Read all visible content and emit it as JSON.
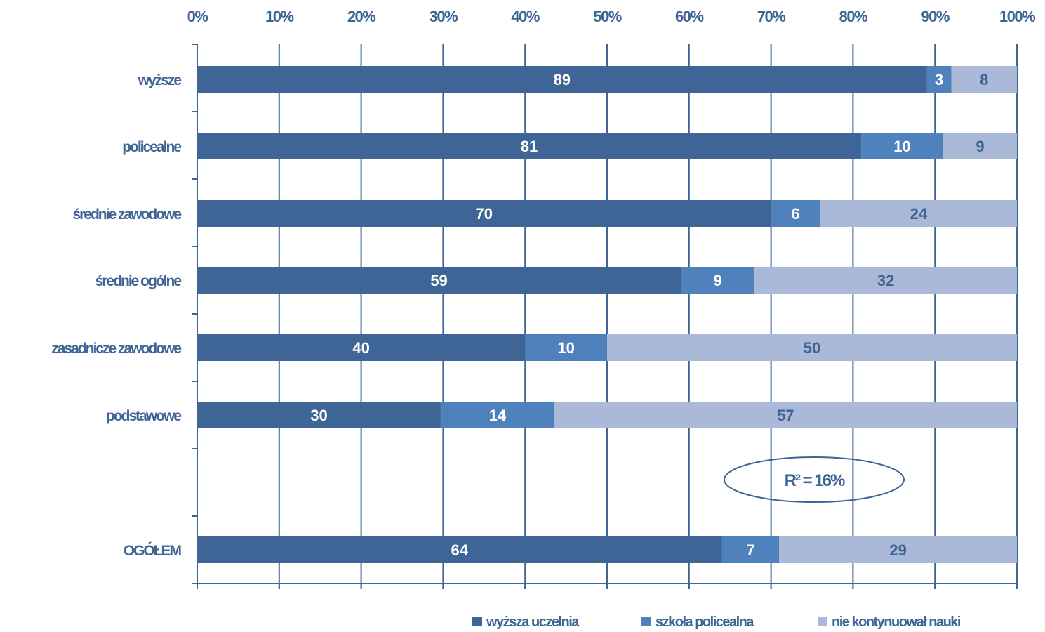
{
  "chart_data": {
    "type": "bar",
    "orientation": "horizontal",
    "stacked": "percent",
    "categories": [
      "wyższe",
      "policealne",
      "średnie zawodowe",
      "średnie ogólne",
      "zasadnicze  zawodowe",
      "podstawowe",
      "OGÓŁEM"
    ],
    "series": [
      {
        "name": "wyższa uczelnia",
        "color": "#3e6596",
        "label_color": "#ffffff",
        "values": [
          89,
          81,
          70,
          59,
          40,
          30,
          64
        ]
      },
      {
        "name": "szkoła policealna",
        "color": "#4f81bd",
        "label_color": "#ffffff",
        "values": [
          3,
          10,
          6,
          9,
          10,
          14,
          7
        ]
      },
      {
        "name": "nie kontynuował  nauki",
        "color": "#aab9d8",
        "label_color": "#3e6596",
        "values": [
          8,
          9,
          24,
          32,
          50,
          57,
          29
        ]
      }
    ],
    "x_ticks": [
      "0%",
      "10%",
      "20%",
      "30%",
      "40%",
      "50%",
      "60%",
      "70%",
      "80%",
      "90%",
      "100%"
    ],
    "xlim": [
      0,
      100
    ],
    "grid": true,
    "legend_position": "bottom",
    "annotation": "R² = 16%",
    "axis_color": "#3e6596"
  }
}
